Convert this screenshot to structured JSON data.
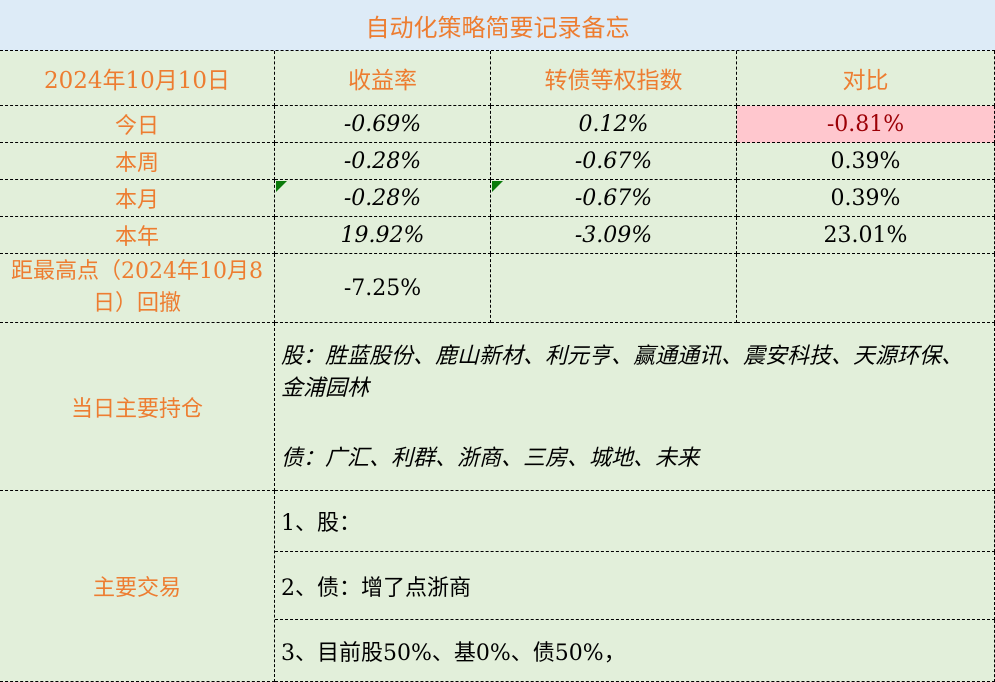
{
  "title": "自动化策略简要记录备忘",
  "header": {
    "date": "2024年10月10日",
    "col1": "收益率",
    "col2": "转债等权指数",
    "col3": "对比"
  },
  "rows": [
    {
      "label": "今日",
      "ret": "-0.69%",
      "idx": "0.12%",
      "diff": "-0.81%"
    },
    {
      "label": "本周",
      "ret": "-0.28%",
      "idx": "-0.67%",
      "diff": "0.39%"
    },
    {
      "label": "本月",
      "ret": "-0.28%",
      "idx": "-0.67%",
      "diff": "0.39%"
    },
    {
      "label": "本年",
      "ret": "19.92%",
      "idx": "-3.09%",
      "diff": "23.01%"
    }
  ],
  "drawdown": {
    "label": "距最高点（2024年10月8日）回撤",
    "value": "-7.25%"
  },
  "holdings": {
    "label": "当日主要持仓",
    "stocks": "股：胜蓝股份、鹿山新材、利元亨、赢通通讯、震安科技、天源环保、金浦园林",
    "bonds": "债：广汇、利群、浙商、三房、城地、未来"
  },
  "trades": {
    "label": "主要交易",
    "items": [
      "1、股：",
      "2、债：增了点浙商",
      "3、目前股50%、基0%、债50%，"
    ]
  },
  "colors": {
    "background": "#e2efda",
    "title_bg": "#ddebf7",
    "accent": "#ed7d31",
    "negative_bg": "#ffc7ce",
    "negative_text": "#9c0006"
  }
}
